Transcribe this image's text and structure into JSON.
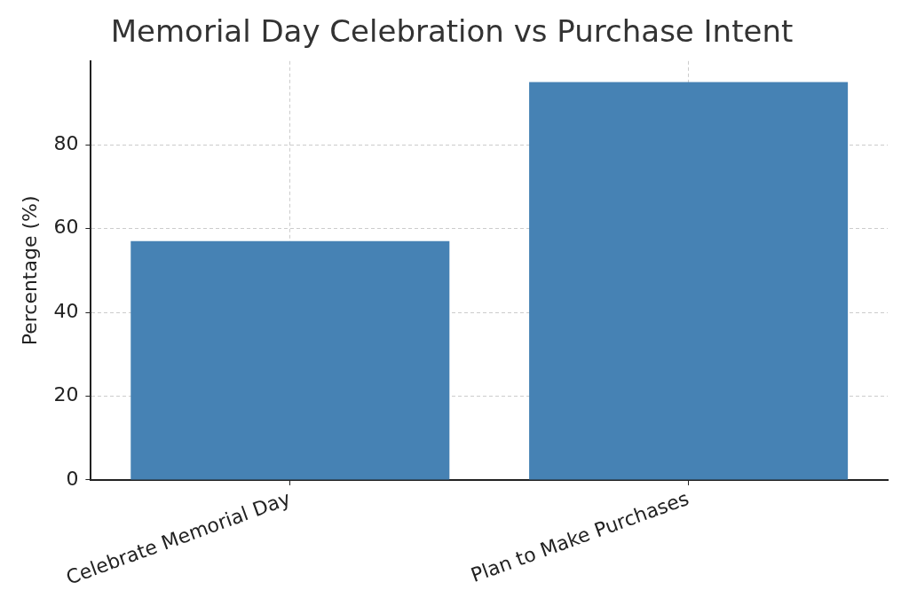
{
  "chart_data": {
    "type": "bar",
    "title": "Memorial Day Celebration vs Purchase Intent",
    "ylabel": "Percentage (%)",
    "categories": [
      "Celebrate Memorial Day",
      "Plan to Make Purchases"
    ],
    "values": [
      57,
      95
    ],
    "color": "#4682b4",
    "ylim": [
      0,
      100
    ],
    "yticks": [
      0,
      20,
      40,
      60,
      80
    ],
    "grid": true
  }
}
